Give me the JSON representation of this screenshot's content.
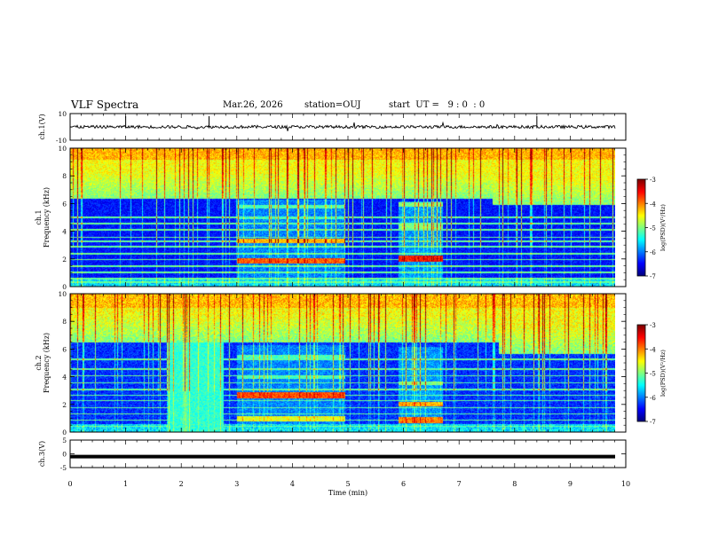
{
  "header": {
    "title": "VLF Spectra",
    "date": "Mar.26, 2026",
    "station": "station=OUJ",
    "start": "start  UT =   9 : 0  : 0"
  },
  "colors": {
    "spectrogram_background": "#0a1f8c",
    "trace": "#000000"
  },
  "chart_data": [
    {
      "type": "line",
      "name": "ch1-waveform",
      "ylabel": "ch.1(V)",
      "ylim": [
        -10,
        10
      ],
      "yticks": [
        "10",
        "-10"
      ],
      "description_values": {
        "mean": 0,
        "typical_range": [
          -1,
          1
        ]
      }
    },
    {
      "type": "heatmap",
      "name": "ch1-spectrogram",
      "ylabel": "ch.1\nFrequency (kHz)",
      "ylabel_lines": [
        "ch.1",
        "Frequency (kHz)"
      ],
      "ylim": [
        0,
        10
      ],
      "yticks": [
        "0",
        "2",
        "4",
        "6",
        "8",
        "10"
      ],
      "colorbar": {
        "label": "log(PSD)(V²/Hz)",
        "range": [
          -7,
          -3
        ],
        "ticks": [
          "-3",
          "-4",
          "-5",
          "-6",
          "-7"
        ]
      }
    },
    {
      "type": "heatmap",
      "name": "ch2-spectrogram",
      "ylabel_lines": [
        "ch.2",
        "Frequency (kHz)"
      ],
      "ylim": [
        0,
        10
      ],
      "yticks": [
        "0",
        "2",
        "4",
        "6",
        "8",
        "10"
      ],
      "colorbar": {
        "label": "log(PSD)(V²/Hz)",
        "range": [
          -7,
          -3
        ],
        "ticks": [
          "-3",
          "-4",
          "-5",
          "-6",
          "-7"
        ]
      }
    },
    {
      "type": "line",
      "name": "ch3-waveform",
      "ylabel": "ch.3(V)",
      "ylim": [
        -5,
        5
      ],
      "yticks": [
        "5",
        "0",
        "-5"
      ],
      "values": {
        "constant": -1
      }
    }
  ],
  "xaxis": {
    "xlabel": "Time (min)",
    "xlim": [
      0,
      10
    ],
    "ticks": [
      "0",
      "1",
      "2",
      "3",
      "4",
      "5",
      "6",
      "7",
      "8",
      "9",
      "10"
    ]
  }
}
